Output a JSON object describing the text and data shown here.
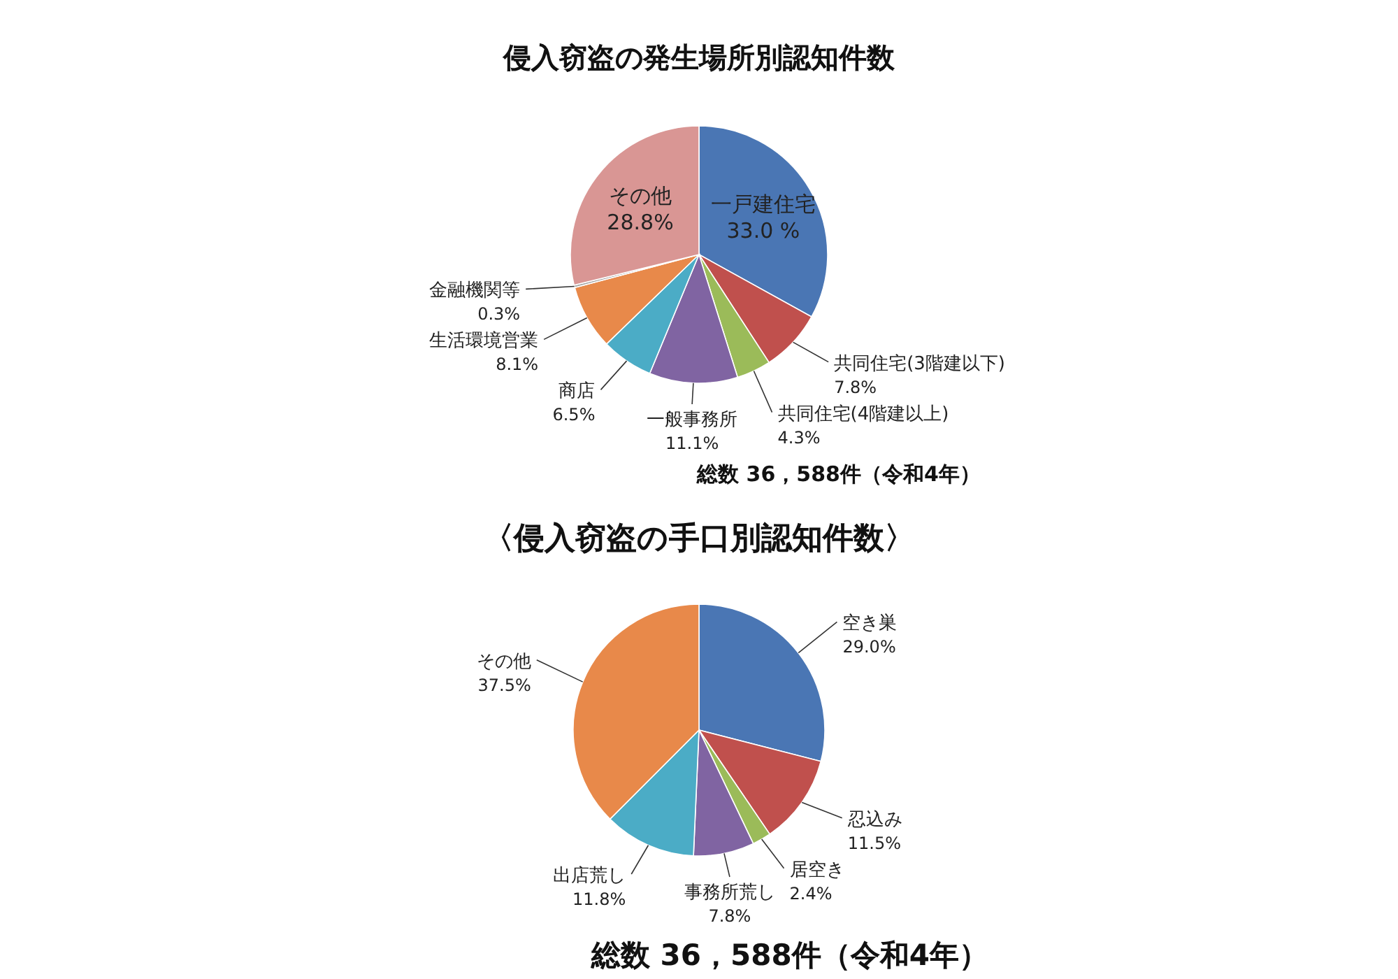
{
  "chart_data": [
    {
      "type": "pie",
      "title": "侵入窃盗の発生場所別認知件数",
      "categories": [
        "一戸建住宅",
        "共同住宅(3階建以下)",
        "共同住宅(4階建以上)",
        "一般事務所",
        "商店",
        "生活環境営業",
        "金融機関等",
        "その他"
      ],
      "values": [
        33.0,
        7.8,
        4.3,
        11.1,
        6.5,
        8.1,
        0.3,
        28.8
      ],
      "value_labels": [
        "33.0 %",
        "7.8%",
        "4.3%",
        "11.1%",
        "6.5%",
        "8.1%",
        "0.3%",
        "28.8%"
      ],
      "colors": [
        "#4a76b4",
        "#c0504d",
        "#9bbb59",
        "#8064a2",
        "#4bacc6",
        "#e8894a",
        "#a5a5a5",
        "#d99694"
      ],
      "annotations": [
        "総数 36，588件（令和4年）"
      ]
    },
    {
      "type": "pie",
      "title": "〈侵入窃盗の手口別認知件数〉",
      "categories": [
        "空き巣",
        "忍込み",
        "居空き",
        "事務所荒し",
        "出店荒し",
        "その他"
      ],
      "values": [
        29.0,
        11.5,
        2.4,
        7.8,
        11.8,
        37.5
      ],
      "value_labels": [
        "29.0%",
        "11.5%",
        "2.4%",
        "7.8%",
        "11.8%",
        "37.5%"
      ],
      "colors": [
        "#4a76b4",
        "#c0504d",
        "#9bbb59",
        "#8064a2",
        "#4bacc6",
        "#e8894a"
      ],
      "annotations": [
        "総数 36，588件（令和4年）"
      ]
    }
  ]
}
